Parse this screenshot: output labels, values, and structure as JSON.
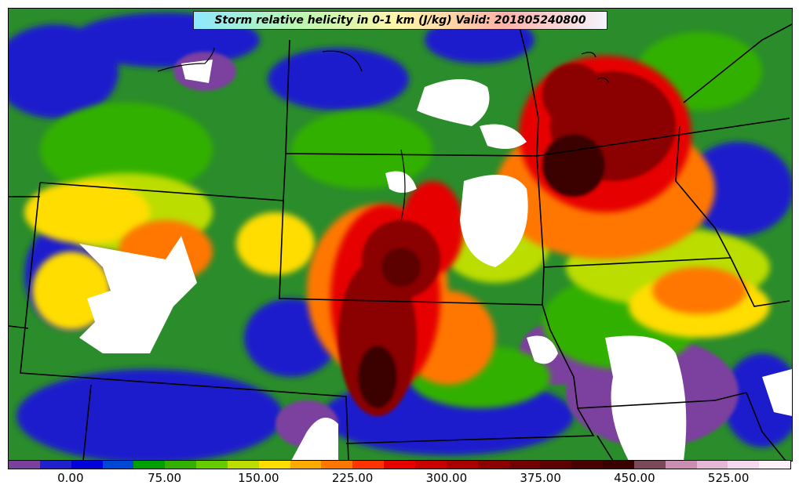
{
  "title": "Storm relative helicity in 0-1 km (J/kg) Valid: 201805240800",
  "colorbar": {
    "colors": [
      "#7b3f9e",
      "#2020cc",
      "#0000dd",
      "#0047d6",
      "#00a000",
      "#33b000",
      "#66cc00",
      "#bbdd00",
      "#ffdd00",
      "#ffaa00",
      "#ff7700",
      "#ff3300",
      "#e60000",
      "#c80000",
      "#aa0000",
      "#8b0000",
      "#730000",
      "#5c0000",
      "#490000",
      "#3a0000",
      "#7a4a5a",
      "#c88fb0",
      "#e6b8d6",
      "#f6d8ee",
      "#fff0fa"
    ],
    "tick_labels": [
      "0.00",
      "75.00",
      "150.00",
      "225.00",
      "300.00",
      "375.00",
      "450.00",
      "525.00"
    ],
    "tick_values": [
      0,
      75,
      150,
      225,
      300,
      375,
      450,
      525
    ],
    "range": [
      -50,
      575
    ]
  },
  "map": {
    "field_colors": {
      "background": "#2a8c2a",
      "low_blue": "#1a1acc",
      "purple": "#7b3f9e",
      "green": "#33b000",
      "yellow_green": "#bbdd00",
      "yellow": "#ffdd00",
      "orange": "#ff7700",
      "red": "#e60000",
      "dark_red": "#8b0000",
      "darkest": "#3a0000",
      "white": "#ffffff"
    },
    "boundaries": "state borders in black"
  }
}
